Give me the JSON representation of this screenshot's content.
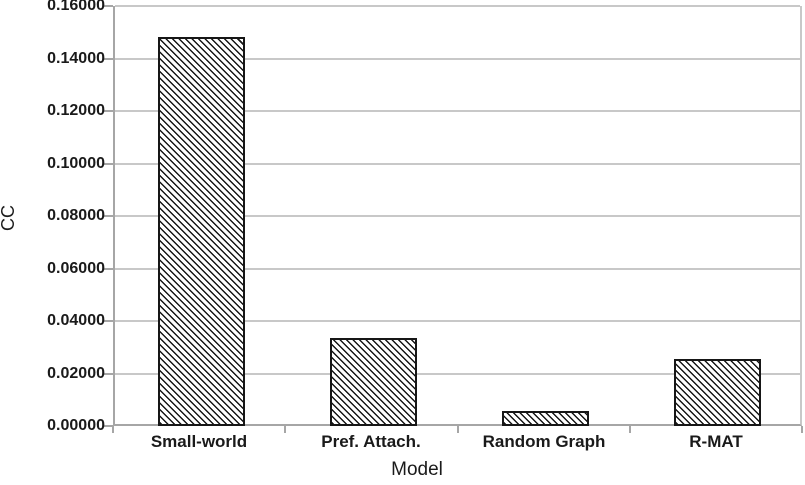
{
  "chart_data": {
    "type": "bar",
    "title": "",
    "xlabel": "Model",
    "ylabel": "CC",
    "categories": [
      "Small-world",
      "Pref. Attach.",
      "Random Graph",
      "R-MAT"
    ],
    "values": [
      0.1483,
      0.0335,
      0.0058,
      0.0254
    ],
    "ylim": [
      0,
      0.16
    ],
    "ytick_step": 0.02,
    "ytick_labels": [
      "0.00000",
      "0.02000",
      "0.04000",
      "0.06000",
      "0.08000",
      "0.10000",
      "0.12000",
      "0.14000",
      "0.16000"
    ],
    "grid": true,
    "legend": "none",
    "bar_style": {
      "fill": "#ffffff",
      "hatch": "diagonal-backslash",
      "border": "#161616"
    }
  },
  "colors": {
    "background": "#ffffff",
    "gridline": "#c8c8c8",
    "axis": "#a6a6a6",
    "text": "#1a1a1a"
  }
}
